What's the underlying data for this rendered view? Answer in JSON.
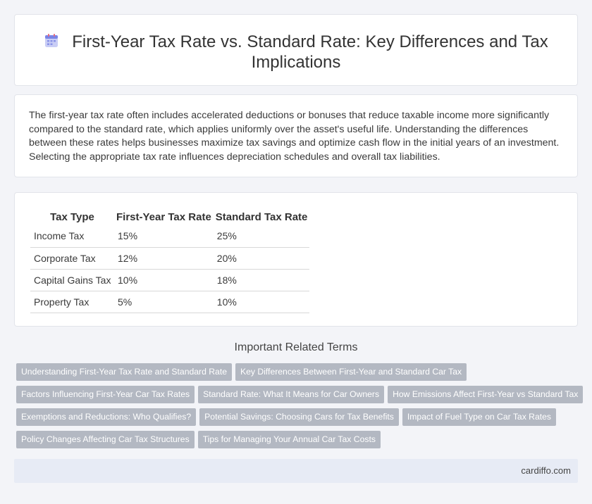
{
  "header": {
    "icon": "calendar-icon",
    "title": "First-Year Tax Rate vs. Standard Rate: Key Differences and Tax Implications"
  },
  "intro": {
    "text": "The first-year tax rate often includes accelerated deductions or bonuses that reduce taxable income more significantly compared to the standard rate, which applies uniformly over the asset's useful life. Understanding the differences between these rates helps businesses maximize tax savings and optimize cash flow in the initial years of an investment. Selecting the appropriate tax rate influences depreciation schedules and overall tax liabilities."
  },
  "table": {
    "headers": [
      "Tax Type",
      "First-Year Tax Rate",
      "Standard Tax Rate"
    ],
    "rows": [
      [
        "Income Tax",
        "15%",
        "25%"
      ],
      [
        "Corporate Tax",
        "12%",
        "20%"
      ],
      [
        "Capital Gains Tax",
        "10%",
        "18%"
      ],
      [
        "Property Tax",
        "5%",
        "10%"
      ]
    ]
  },
  "related": {
    "title": "Important Related Terms",
    "rows": [
      [
        "Understanding First-Year Tax Rate and Standard Rate",
        "Key Differences Between First-Year and Standard Car Tax"
      ],
      [
        "Factors Influencing First-Year Car Tax Rates",
        "Standard Rate: What It Means for Car Owners",
        "How Emissions Affect First-Year vs Standard Tax"
      ],
      [
        "Exemptions and Reductions: Who Qualifies?",
        "Potential Savings: Choosing Cars for Tax Benefits",
        "Impact of Fuel Type on Car Tax Rates"
      ],
      [
        "Policy Changes Affecting Car Tax Structures",
        "Tips for Managing Your Annual Car Tax Costs"
      ]
    ]
  },
  "footer": {
    "site": "cardiffo.com"
  }
}
